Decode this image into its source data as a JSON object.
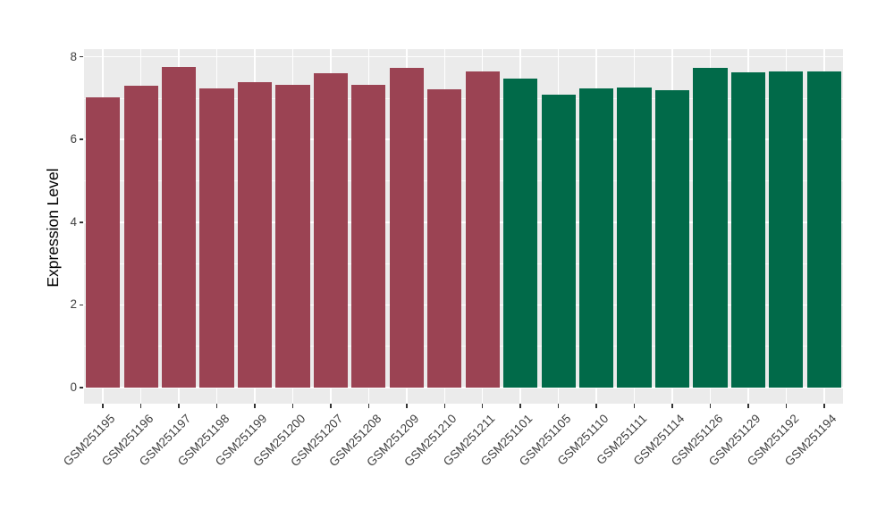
{
  "chart_data": {
    "type": "bar",
    "ylabel": "Expression Level",
    "ylim": [
      0,
      8
    ],
    "yticks": [
      0,
      2,
      4,
      6,
      8
    ],
    "yticks_minor": [
      1,
      3,
      5,
      7
    ],
    "grid": {
      "major": true,
      "minor": true,
      "color": "#FFFFFF"
    },
    "legend_position": "none",
    "bar_width_fraction": 0.9,
    "categories": [
      "GSM251195",
      "GSM251196",
      "GSM251197",
      "GSM251198",
      "GSM251199",
      "GSM251200",
      "GSM251207",
      "GSM251208",
      "GSM251209",
      "GSM251210",
      "GSM251211",
      "GSM251101",
      "GSM251105",
      "GSM251110",
      "GSM251111",
      "GSM251114",
      "GSM251126",
      "GSM251129",
      "GSM251192",
      "GSM251194"
    ],
    "values": [
      7.01,
      7.3,
      7.75,
      7.24,
      7.38,
      7.33,
      7.6,
      7.33,
      7.74,
      7.22,
      7.64,
      7.47,
      7.09,
      7.23,
      7.25,
      7.19,
      7.74,
      7.62,
      7.64,
      7.64
    ],
    "groups": [
      "group-1",
      "group-1",
      "group-1",
      "group-1",
      "group-1",
      "group-1",
      "group-1",
      "group-1",
      "group-1",
      "group-1",
      "group-1",
      "group-2",
      "group-2",
      "group-2",
      "group-2",
      "group-2",
      "group-2",
      "group-2",
      "group-2",
      "group-2"
    ],
    "group_colors": {
      "group-1": "#9B4353",
      "group-2": "#016A49"
    }
  },
  "style": {
    "panel_background": "#EBEBEB",
    "grid_color": "#FFFFFF",
    "axis_text_color": "#404040",
    "axis_title_color": "#000000",
    "tick_mark_color": "#333333",
    "figure_background": "#FFFFFF"
  }
}
